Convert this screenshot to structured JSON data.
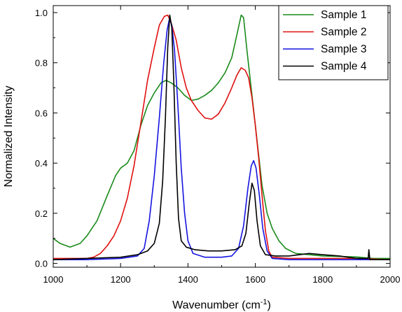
{
  "chart_data": {
    "type": "line",
    "xlabel": "Wavenumber (cm",
    "xlabel_superscript": "-1",
    "xlabel_suffix": ")",
    "ylabel": "Normalized Intensity",
    "xlim": [
      1000,
      2000
    ],
    "ylim": [
      0,
      1.0
    ],
    "xticks": [
      1000,
      1200,
      1400,
      1600,
      1800,
      2000
    ],
    "yticks": [
      0.0,
      0.2,
      0.4,
      0.6,
      0.8,
      1.0
    ],
    "xtick_labels": [
      "1000",
      "1200",
      "1400",
      "1600",
      "1800",
      "2000"
    ],
    "ytick_labels": [
      "0.0",
      "0.2",
      "0.4",
      "0.6",
      "0.8",
      "1.0"
    ],
    "grid": false,
    "legend_position": "top-right",
    "series": [
      {
        "name": "Sample 1",
        "color": "#1a8a1a",
        "points": [
          [
            1000,
            0.1
          ],
          [
            1020,
            0.08
          ],
          [
            1050,
            0.065
          ],
          [
            1080,
            0.08
          ],
          [
            1100,
            0.11
          ],
          [
            1130,
            0.17
          ],
          [
            1160,
            0.27
          ],
          [
            1185,
            0.35
          ],
          [
            1200,
            0.38
          ],
          [
            1220,
            0.4
          ],
          [
            1240,
            0.45
          ],
          [
            1260,
            0.55
          ],
          [
            1280,
            0.63
          ],
          [
            1300,
            0.68
          ],
          [
            1320,
            0.72
          ],
          [
            1335,
            0.73
          ],
          [
            1350,
            0.72
          ],
          [
            1370,
            0.7
          ],
          [
            1390,
            0.67
          ],
          [
            1410,
            0.65
          ],
          [
            1430,
            0.655
          ],
          [
            1450,
            0.67
          ],
          [
            1470,
            0.69
          ],
          [
            1490,
            0.72
          ],
          [
            1510,
            0.76
          ],
          [
            1530,
            0.82
          ],
          [
            1545,
            0.91
          ],
          [
            1558,
            0.99
          ],
          [
            1565,
            0.98
          ],
          [
            1575,
            0.85
          ],
          [
            1590,
            0.67
          ],
          [
            1605,
            0.49
          ],
          [
            1620,
            0.31
          ],
          [
            1635,
            0.2
          ],
          [
            1650,
            0.14
          ],
          [
            1670,
            0.09
          ],
          [
            1690,
            0.06
          ],
          [
            1720,
            0.04
          ],
          [
            1760,
            0.035
          ],
          [
            1800,
            0.03
          ],
          [
            1850,
            0.028
          ],
          [
            1900,
            0.026
          ],
          [
            1950,
            0.02
          ],
          [
            2000,
            0.02
          ]
        ]
      },
      {
        "name": "Sample 2",
        "color": "#e01010",
        "points": [
          [
            1000,
            0.02
          ],
          [
            1050,
            0.02
          ],
          [
            1100,
            0.02
          ],
          [
            1120,
            0.025
          ],
          [
            1140,
            0.04
          ],
          [
            1160,
            0.07
          ],
          [
            1180,
            0.11
          ],
          [
            1200,
            0.17
          ],
          [
            1220,
            0.26
          ],
          [
            1240,
            0.39
          ],
          [
            1260,
            0.56
          ],
          [
            1280,
            0.73
          ],
          [
            1300,
            0.86
          ],
          [
            1315,
            0.95
          ],
          [
            1330,
            0.985
          ],
          [
            1340,
            0.99
          ],
          [
            1350,
            0.96
          ],
          [
            1365,
            0.89
          ],
          [
            1380,
            0.78
          ],
          [
            1395,
            0.7
          ],
          [
            1410,
            0.65
          ],
          [
            1430,
            0.61
          ],
          [
            1450,
            0.58
          ],
          [
            1470,
            0.575
          ],
          [
            1490,
            0.595
          ],
          [
            1510,
            0.64
          ],
          [
            1530,
            0.7
          ],
          [
            1545,
            0.75
          ],
          [
            1558,
            0.78
          ],
          [
            1570,
            0.77
          ],
          [
            1580,
            0.74
          ],
          [
            1590,
            0.66
          ],
          [
            1600,
            0.55
          ],
          [
            1610,
            0.42
          ],
          [
            1620,
            0.27
          ],
          [
            1630,
            0.13
          ],
          [
            1640,
            0.05
          ],
          [
            1650,
            0.025
          ],
          [
            1700,
            0.02
          ],
          [
            1800,
            0.02
          ],
          [
            1900,
            0.02
          ],
          [
            2000,
            0.015
          ]
        ]
      },
      {
        "name": "Sample 3",
        "color": "#1414e0",
        "points": [
          [
            1000,
            0.015
          ],
          [
            1100,
            0.015
          ],
          [
            1200,
            0.02
          ],
          [
            1250,
            0.03
          ],
          [
            1270,
            0.06
          ],
          [
            1285,
            0.17
          ],
          [
            1300,
            0.35
          ],
          [
            1315,
            0.58
          ],
          [
            1328,
            0.8
          ],
          [
            1338,
            0.93
          ],
          [
            1345,
            0.975
          ],
          [
            1352,
            0.95
          ],
          [
            1360,
            0.85
          ],
          [
            1370,
            0.63
          ],
          [
            1380,
            0.38
          ],
          [
            1390,
            0.2
          ],
          [
            1400,
            0.09
          ],
          [
            1415,
            0.04
          ],
          [
            1450,
            0.025
          ],
          [
            1500,
            0.025
          ],
          [
            1530,
            0.03
          ],
          [
            1550,
            0.06
          ],
          [
            1565,
            0.15
          ],
          [
            1578,
            0.3
          ],
          [
            1588,
            0.39
          ],
          [
            1595,
            0.41
          ],
          [
            1602,
            0.38
          ],
          [
            1612,
            0.27
          ],
          [
            1622,
            0.14
          ],
          [
            1635,
            0.05
          ],
          [
            1650,
            0.02
          ],
          [
            1700,
            0.015
          ],
          [
            1800,
            0.015
          ],
          [
            1900,
            0.015
          ],
          [
            2000,
            0.015
          ]
        ]
      },
      {
        "name": "Sample 4",
        "color": "#000000",
        "points": [
          [
            1000,
            0.015
          ],
          [
            1100,
            0.02
          ],
          [
            1200,
            0.025
          ],
          [
            1250,
            0.035
          ],
          [
            1280,
            0.05
          ],
          [
            1300,
            0.08
          ],
          [
            1315,
            0.16
          ],
          [
            1325,
            0.33
          ],
          [
            1333,
            0.58
          ],
          [
            1340,
            0.86
          ],
          [
            1346,
            0.99
          ],
          [
            1352,
            0.94
          ],
          [
            1358,
            0.72
          ],
          [
            1365,
            0.4
          ],
          [
            1372,
            0.18
          ],
          [
            1380,
            0.09
          ],
          [
            1395,
            0.065
          ],
          [
            1420,
            0.055
          ],
          [
            1460,
            0.05
          ],
          [
            1500,
            0.05
          ],
          [
            1540,
            0.055
          ],
          [
            1560,
            0.07
          ],
          [
            1572,
            0.12
          ],
          [
            1582,
            0.24
          ],
          [
            1590,
            0.32
          ],
          [
            1597,
            0.29
          ],
          [
            1605,
            0.17
          ],
          [
            1615,
            0.07
          ],
          [
            1630,
            0.035
          ],
          [
            1660,
            0.03
          ],
          [
            1700,
            0.03
          ],
          [
            1760,
            0.04
          ],
          [
            1800,
            0.035
          ],
          [
            1850,
            0.03
          ],
          [
            1900,
            0.02
          ],
          [
            1935,
            0.02
          ],
          [
            1937,
            0.055
          ],
          [
            1940,
            0.015
          ],
          [
            1970,
            0.015
          ],
          [
            2000,
            0.015
          ]
        ]
      }
    ]
  }
}
